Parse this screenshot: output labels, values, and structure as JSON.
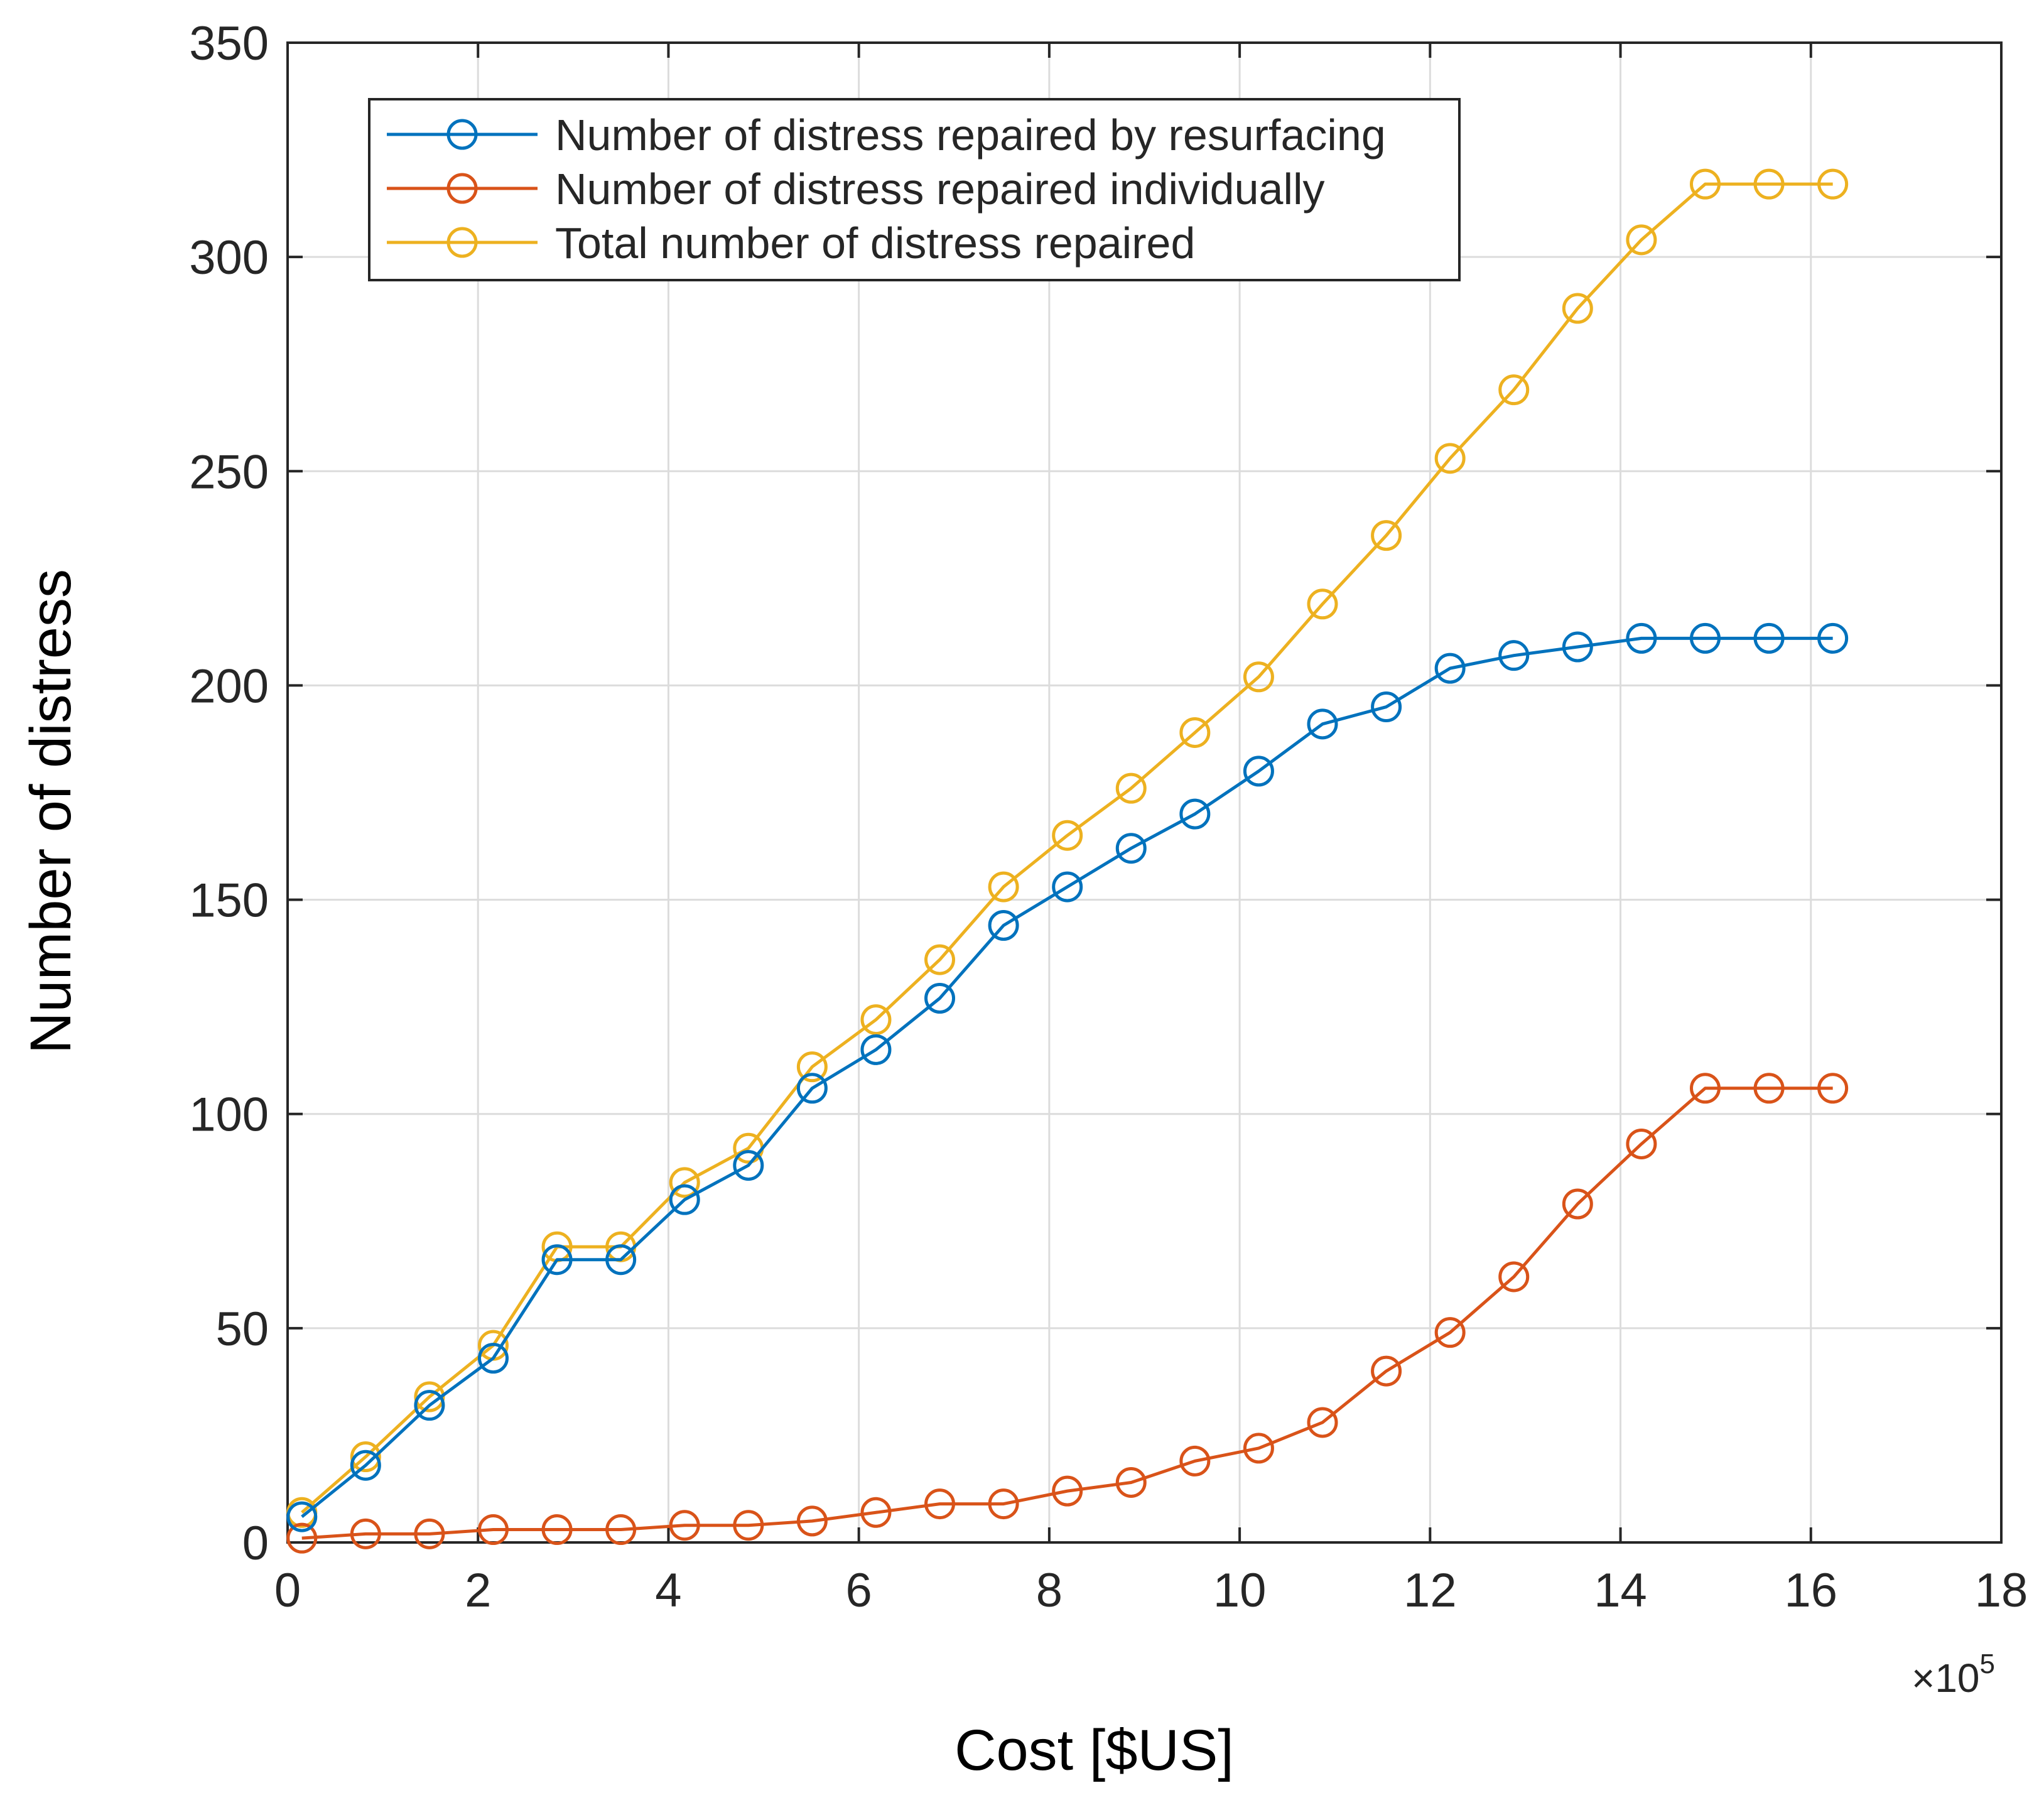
{
  "chart_data": {
    "type": "line",
    "xlabel": "Cost [$US]",
    "ylabel": "Number of distress",
    "x_multiplier_base": "×10",
    "x_multiplier_exp": "5",
    "xlim": [
      0,
      18
    ],
    "ylim": [
      0,
      350
    ],
    "xticks": [
      0,
      2,
      4,
      6,
      8,
      10,
      12,
      14,
      16,
      18
    ],
    "yticks": [
      0,
      50,
      100,
      150,
      200,
      250,
      300,
      350
    ],
    "xtick_labels": [
      "0",
      "2",
      "4",
      "6",
      "8",
      "10",
      "12",
      "14",
      "16",
      "18"
    ],
    "ytick_labels": [
      "0",
      "50",
      "100",
      "150",
      "200",
      "250",
      "300",
      "350"
    ],
    "grid": true,
    "legend_position": "top-left",
    "marker": "circle-open",
    "x": [
      0.15,
      0.82,
      1.49,
      2.16,
      2.83,
      3.5,
      4.17,
      4.84,
      5.51,
      6.18,
      6.85,
      7.52,
      8.19,
      8.86,
      9.53,
      10.2,
      10.87,
      11.54,
      12.21,
      12.88,
      13.55,
      14.22,
      14.89,
      15.56,
      16.23
    ],
    "series": [
      {
        "name": "Number of distress repaired by resurfacing",
        "color": "#0072BD",
        "values": [
          6,
          18,
          32,
          43,
          66,
          66,
          80,
          88,
          106,
          115,
          127,
          144,
          153,
          162,
          170,
          180,
          191,
          195,
          204,
          207,
          209,
          211,
          211,
          211,
          211
        ]
      },
      {
        "name": "Number of distress repaired individually",
        "color": "#D95319",
        "values": [
          1,
          2,
          2,
          3,
          3,
          3,
          4,
          4,
          5,
          7,
          9,
          9,
          12,
          14,
          19,
          22,
          28,
          40,
          49,
          62,
          79,
          93,
          106,
          106,
          106
        ]
      },
      {
        "name": "Total number of distress repaired",
        "color": "#EDB120",
        "values": [
          7,
          20,
          34,
          46,
          69,
          69,
          84,
          92,
          111,
          122,
          136,
          153,
          165,
          176,
          189,
          202,
          219,
          235,
          253,
          269,
          288,
          304,
          317,
          317,
          317
        ]
      }
    ]
  }
}
